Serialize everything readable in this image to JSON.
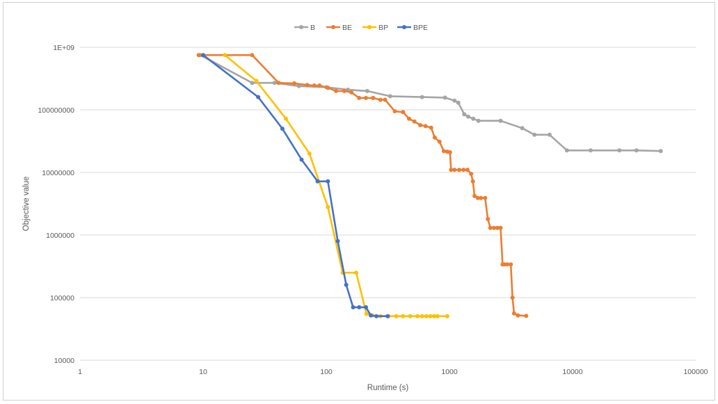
{
  "chart_data": {
    "type": "line",
    "title": "",
    "xlabel": "Runtime (s)",
    "ylabel": "Objective value",
    "x_scale": "log",
    "y_scale": "log",
    "xlim": [
      1,
      100000
    ],
    "ylim": [
      10000,
      1000000000
    ],
    "x_tick_labels": [
      "1",
      "10",
      "100",
      "1000",
      "10000",
      "100000"
    ],
    "y_tick_labels": [
      "10000",
      "100000",
      "1000000",
      "10000000",
      "100000000",
      "1E+09"
    ],
    "grid": "horizontal",
    "legend_position": "top",
    "series": [
      {
        "name": "B",
        "color": "#a5a5a5",
        "points": [
          [
            9.5,
            750000000
          ],
          [
            25,
            270000000
          ],
          [
            38,
            270000000
          ],
          [
            60,
            240000000
          ],
          [
            100,
            230000000
          ],
          [
            150,
            210000000
          ],
          [
            215,
            200000000
          ],
          [
            330,
            165000000
          ],
          [
            600,
            160000000
          ],
          [
            920,
            157000000
          ],
          [
            1100,
            140000000
          ],
          [
            1180,
            130000000
          ],
          [
            1320,
            85000000
          ],
          [
            1420,
            78000000
          ],
          [
            1560,
            72000000
          ],
          [
            1720,
            67000000
          ],
          [
            2600,
            67000000
          ],
          [
            3900,
            51000000
          ],
          [
            4900,
            40000000
          ],
          [
            6500,
            40000000
          ],
          [
            9000,
            22500000
          ],
          [
            14000,
            22500000
          ],
          [
            24000,
            22500000
          ],
          [
            33000,
            22500000
          ],
          [
            52000,
            22000000
          ]
        ]
      },
      {
        "name": "BE",
        "color": "#ed7d31",
        "points": [
          [
            9.2,
            750000000
          ],
          [
            25,
            750000000
          ],
          [
            41,
            270000000
          ],
          [
            55,
            265000000
          ],
          [
            70,
            250000000
          ],
          [
            80,
            245000000
          ],
          [
            88,
            245000000
          ],
          [
            103,
            225000000
          ],
          [
            120,
            200000000
          ],
          [
            140,
            200000000
          ],
          [
            160,
            190000000
          ],
          [
            185,
            155000000
          ],
          [
            210,
            155000000
          ],
          [
            240,
            155000000
          ],
          [
            275,
            145000000
          ],
          [
            300,
            145000000
          ],
          [
            360,
            95000000
          ],
          [
            420,
            92000000
          ],
          [
            470,
            72000000
          ],
          [
            520,
            65000000
          ],
          [
            580,
            57000000
          ],
          [
            640,
            55000000
          ],
          [
            710,
            52000000
          ],
          [
            760,
            36000000
          ],
          [
            830,
            31000000
          ],
          [
            900,
            22000000
          ],
          [
            960,
            21500000
          ],
          [
            1010,
            21000000
          ],
          [
            1030,
            11000000
          ],
          [
            1100,
            11000000
          ],
          [
            1200,
            11000000
          ],
          [
            1300,
            11000000
          ],
          [
            1400,
            11000000
          ],
          [
            1500,
            9500000
          ],
          [
            1550,
            7200000
          ],
          [
            1600,
            4200000
          ],
          [
            1700,
            3900000
          ],
          [
            1800,
            3900000
          ],
          [
            1950,
            3900000
          ],
          [
            2050,
            1800000
          ],
          [
            2150,
            1300000
          ],
          [
            2300,
            1300000
          ],
          [
            2450,
            1300000
          ],
          [
            2600,
            1300000
          ],
          [
            2700,
            340000
          ],
          [
            2800,
            340000
          ],
          [
            2950,
            340000
          ],
          [
            3150,
            340000
          ],
          [
            3250,
            100000
          ],
          [
            3350,
            56000
          ],
          [
            3600,
            52000
          ],
          [
            4200,
            51000
          ]
        ]
      },
      {
        "name": "BP",
        "color": "#ffc000",
        "points": [
          [
            15,
            750000000
          ],
          [
            27,
            290000000
          ],
          [
            47,
            72000000
          ],
          [
            73,
            20000000
          ],
          [
            103,
            2800000
          ],
          [
            136,
            250000
          ],
          [
            175,
            250000
          ],
          [
            212,
            55000
          ],
          [
            235,
            52000
          ],
          [
            275,
            50500
          ],
          [
            320,
            50500
          ],
          [
            370,
            50500
          ],
          [
            420,
            50500
          ],
          [
            480,
            50500
          ],
          [
            550,
            50500
          ],
          [
            600,
            50500
          ],
          [
            650,
            50500
          ],
          [
            700,
            50500
          ],
          [
            750,
            50500
          ],
          [
            800,
            50500
          ],
          [
            960,
            50500
          ]
        ]
      },
      {
        "name": "BPE",
        "color": "#4472c4",
        "points": [
          [
            10,
            750000000
          ],
          [
            28,
            160000000
          ],
          [
            44,
            50000000
          ],
          [
            63,
            16000000
          ],
          [
            85,
            7200000
          ],
          [
            103,
            7200000
          ],
          [
            124,
            800000
          ],
          [
            145,
            160000
          ],
          [
            165,
            70000
          ],
          [
            185,
            70000
          ],
          [
            210,
            70000
          ],
          [
            230,
            52000
          ],
          [
            255,
            50500
          ],
          [
            315,
            50500
          ]
        ]
      }
    ]
  }
}
